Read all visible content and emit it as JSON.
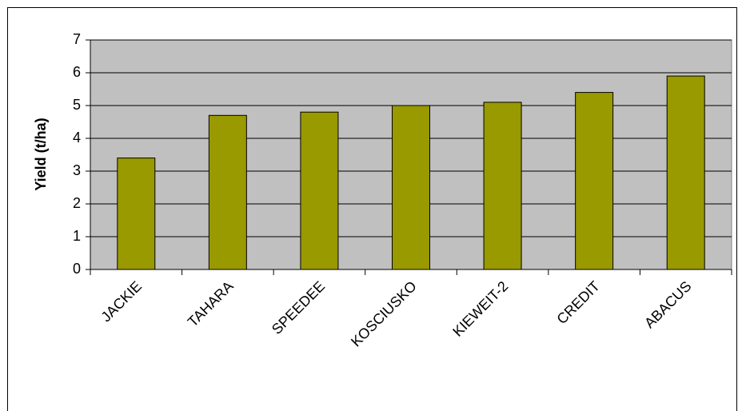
{
  "chart_data": {
    "type": "bar",
    "y_label": "Yield (t/ha)",
    "categories": [
      "JACKIE",
      "TAHARA",
      "SPEEDEE",
      "KOSCIUSKO",
      "KIEWEIT-2",
      "CREDIT",
      "ABACUS"
    ],
    "values": [
      3.4,
      4.7,
      4.8,
      5.0,
      5.1,
      5.4,
      5.9
    ],
    "color": "#999900",
    "ylim": [
      0,
      7
    ],
    "yticks": [
      0,
      1,
      2,
      3,
      4,
      5,
      6,
      7
    ],
    "grid": true
  }
}
